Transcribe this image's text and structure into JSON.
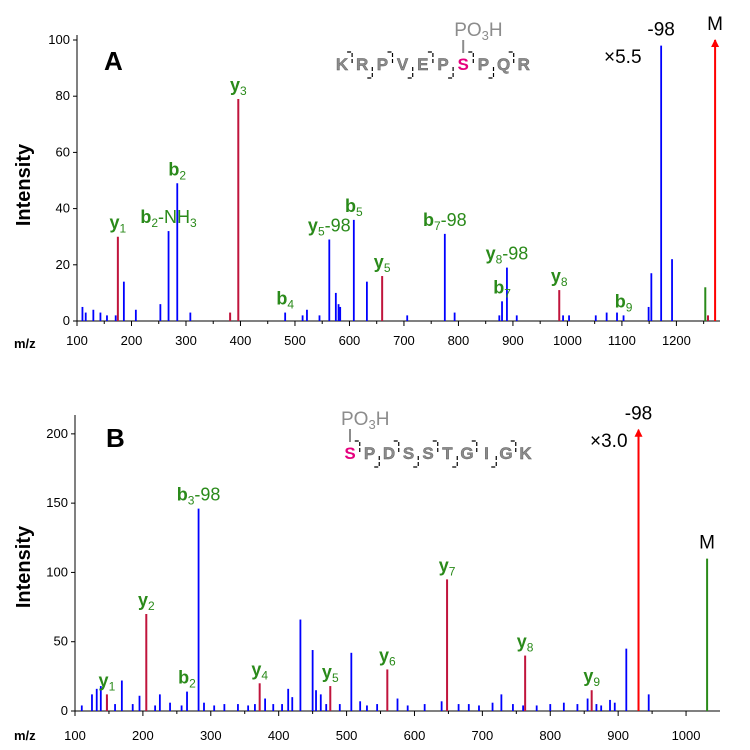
{
  "colors": {
    "blue": "#0000ff",
    "red": "#c0143c",
    "green": "#2a8a1a",
    "arrow": "#ff0000",
    "magenta": "#e6007e",
    "gray": "#8c8c8c",
    "axis": "#000000"
  },
  "chart_data": [
    {
      "type": "bar",
      "panel_label": "A",
      "xlabel": "m/z",
      "ylabel": "Intensity",
      "xlim": [
        100,
        1280
      ],
      "ylim": [
        0,
        100
      ],
      "x_ticks": [
        100,
        200,
        300,
        400,
        500,
        600,
        700,
        800,
        900,
        1000,
        1100,
        1200
      ],
      "y_ticks": [
        0,
        20,
        40,
        60,
        80,
        100
      ],
      "scale_note": "×5.5",
      "sequence": [
        "K",
        "R",
        "P",
        "V",
        "E",
        "P",
        "S",
        "P",
        "Q",
        "R"
      ],
      "phospho_residue_index": 6,
      "phospho_label": "PO3H",
      "series": [
        {
          "color": "blue",
          "values": [
            [
              110,
              5
            ],
            [
              116,
              3
            ],
            [
              130,
              4
            ],
            [
              143,
              3
            ],
            [
              155,
              2
            ],
            [
              171,
              2
            ],
            [
              186,
              14
            ],
            [
              208,
              4
            ],
            [
              253,
              6
            ],
            [
              268,
              32
            ],
            [
              284,
              49
            ],
            [
              308,
              3
            ],
            [
              482,
              3
            ],
            [
              514,
              2
            ],
            [
              522,
              4
            ],
            [
              545,
              2
            ],
            [
              563,
              29
            ],
            [
              575,
              10
            ],
            [
              580,
              6
            ],
            [
              583,
              5
            ],
            [
              608,
              36
            ],
            [
              632,
              14
            ],
            [
              706,
              2
            ],
            [
              775,
              31
            ],
            [
              793,
              3
            ],
            [
              875,
              2
            ],
            [
              880,
              7
            ],
            [
              889,
              19
            ],
            [
              907,
              2
            ],
            [
              992,
              2
            ],
            [
              1003,
              2
            ],
            [
              1052,
              2
            ],
            [
              1072,
              3
            ],
            [
              1091,
              3
            ],
            [
              1103,
              2
            ],
            [
              1149,
              5
            ],
            [
              1154,
              17
            ],
            [
              1172,
              98
            ],
            [
              1192,
              22
            ]
          ]
        },
        {
          "color": "red",
          "values": [
            [
              175,
              30
            ],
            [
              381,
              3
            ],
            [
              396,
              79
            ],
            [
              660,
              16
            ],
            [
              985,
              11
            ],
            [
              1258,
              2
            ]
          ]
        },
        {
          "color": "green",
          "values": [
            [
              1253,
              12
            ]
          ]
        },
        {
          "color": "arrow",
          "values": [
            [
              1271,
              100
            ]
          ]
        }
      ],
      "annotations": [
        {
          "text": "y1",
          "x": 175,
          "y": 30
        },
        {
          "text": "b2",
          "x": 284,
          "y": 49
        },
        {
          "text": "b2-NH3",
          "x": 268,
          "y": 32
        },
        {
          "text": "y3",
          "x": 396,
          "y": 79
        },
        {
          "text": "b4",
          "x": 482,
          "y": 3
        },
        {
          "text": "y5-98",
          "x": 563,
          "y": 29
        },
        {
          "text": "b5",
          "x": 608,
          "y": 36
        },
        {
          "text": "y5",
          "x": 660,
          "y": 16
        },
        {
          "text": "b7-98",
          "x": 775,
          "y": 31
        },
        {
          "text": "y8-98",
          "x": 889,
          "y": 19
        },
        {
          "text": "b7",
          "x": 880,
          "y": 7
        },
        {
          "text": "y8",
          "x": 985,
          "y": 11
        },
        {
          "text": "b9",
          "x": 1103,
          "y": 2
        },
        {
          "text": "-98",
          "x": 1172,
          "y": 98
        },
        {
          "text": "M",
          "x": 1271,
          "y": 100
        }
      ]
    },
    {
      "type": "bar",
      "panel_label": "B",
      "xlabel": "m/z",
      "ylabel": "Intensity",
      "xlim": [
        100,
        1050
      ],
      "ylim": [
        0,
        210
      ],
      "x_ticks": [
        100,
        200,
        300,
        400,
        500,
        600,
        700,
        800,
        900,
        1000
      ],
      "y_ticks": [
        0,
        50,
        100,
        150,
        200
      ],
      "scale_note": "×3.0",
      "sequence": [
        "S",
        "P",
        "D",
        "S",
        "S",
        "T",
        "G",
        "I",
        "G",
        "K"
      ],
      "phospho_residue_index": 0,
      "phospho_label": "PO3H",
      "series": [
        {
          "color": "blue",
          "values": [
            [
              110,
              4
            ],
            [
              125,
              12
            ],
            [
              132,
              16
            ],
            [
              138,
              18
            ],
            [
              147,
              9
            ],
            [
              159,
              5
            ],
            [
              169,
              22
            ],
            [
              185,
              5
            ],
            [
              195,
              11
            ],
            [
              218,
              4
            ],
            [
              225,
              12
            ],
            [
              240,
              6
            ],
            [
              257,
              4
            ],
            [
              265,
              14
            ],
            [
              282,
              146
            ],
            [
              290,
              6
            ],
            [
              305,
              4
            ],
            [
              320,
              5
            ],
            [
              340,
              5
            ],
            [
              355,
              4
            ],
            [
              365,
              5
            ],
            [
              380,
              9
            ],
            [
              392,
              5
            ],
            [
              405,
              5
            ],
            [
              414,
              16
            ],
            [
              420,
              10
            ],
            [
              432,
              66
            ],
            [
              450,
              44
            ],
            [
              455,
              15
            ],
            [
              462,
              12
            ],
            [
              470,
              5
            ],
            [
              490,
              5
            ],
            [
              507,
              42
            ],
            [
              520,
              7
            ],
            [
              530,
              4
            ],
            [
              545,
              5
            ],
            [
              575,
              9
            ],
            [
              590,
              4
            ],
            [
              615,
              5
            ],
            [
              640,
              7
            ],
            [
              665,
              5
            ],
            [
              680,
              5
            ],
            [
              695,
              4
            ],
            [
              715,
              6
            ],
            [
              728,
              12
            ],
            [
              745,
              5
            ],
            [
              760,
              4
            ],
            [
              780,
              4
            ],
            [
              800,
              5
            ],
            [
              820,
              6
            ],
            [
              840,
              5
            ],
            [
              855,
              9
            ],
            [
              868,
              5
            ],
            [
              875,
              4
            ],
            [
              888,
              8
            ],
            [
              895,
              6
            ],
            [
              912,
              45
            ],
            [
              930,
              200
            ],
            [
              945,
              12
            ]
          ]
        },
        {
          "color": "red",
          "values": [
            [
              147,
              12
            ],
            [
              205,
              70
            ],
            [
              372,
              20
            ],
            [
              476,
              18
            ],
            [
              560,
              30
            ],
            [
              648,
              95
            ],
            [
              763,
              40
            ],
            [
              861,
              15
            ]
          ]
        },
        {
          "color": "green",
          "values": [
            [
              1031,
              110
            ]
          ]
        },
        {
          "color": "arrow",
          "values": [
            [
              930,
              203
            ]
          ]
        }
      ],
      "annotations": [
        {
          "text": "y1",
          "x": 147,
          "y": 12
        },
        {
          "text": "y2",
          "x": 205,
          "y": 70
        },
        {
          "text": "b2",
          "x": 265,
          "y": 14
        },
        {
          "text": "b3-98",
          "x": 282,
          "y": 146
        },
        {
          "text": "y4",
          "x": 372,
          "y": 20
        },
        {
          "text": "y5",
          "x": 476,
          "y": 18
        },
        {
          "text": "y6",
          "x": 560,
          "y": 30
        },
        {
          "text": "y7",
          "x": 648,
          "y": 95
        },
        {
          "text": "y8",
          "x": 763,
          "y": 40
        },
        {
          "text": "y9",
          "x": 861,
          "y": 15
        },
        {
          "text": "-98",
          "x": 930,
          "y": 203
        },
        {
          "text": "M",
          "x": 1031,
          "y": 110
        }
      ]
    }
  ]
}
